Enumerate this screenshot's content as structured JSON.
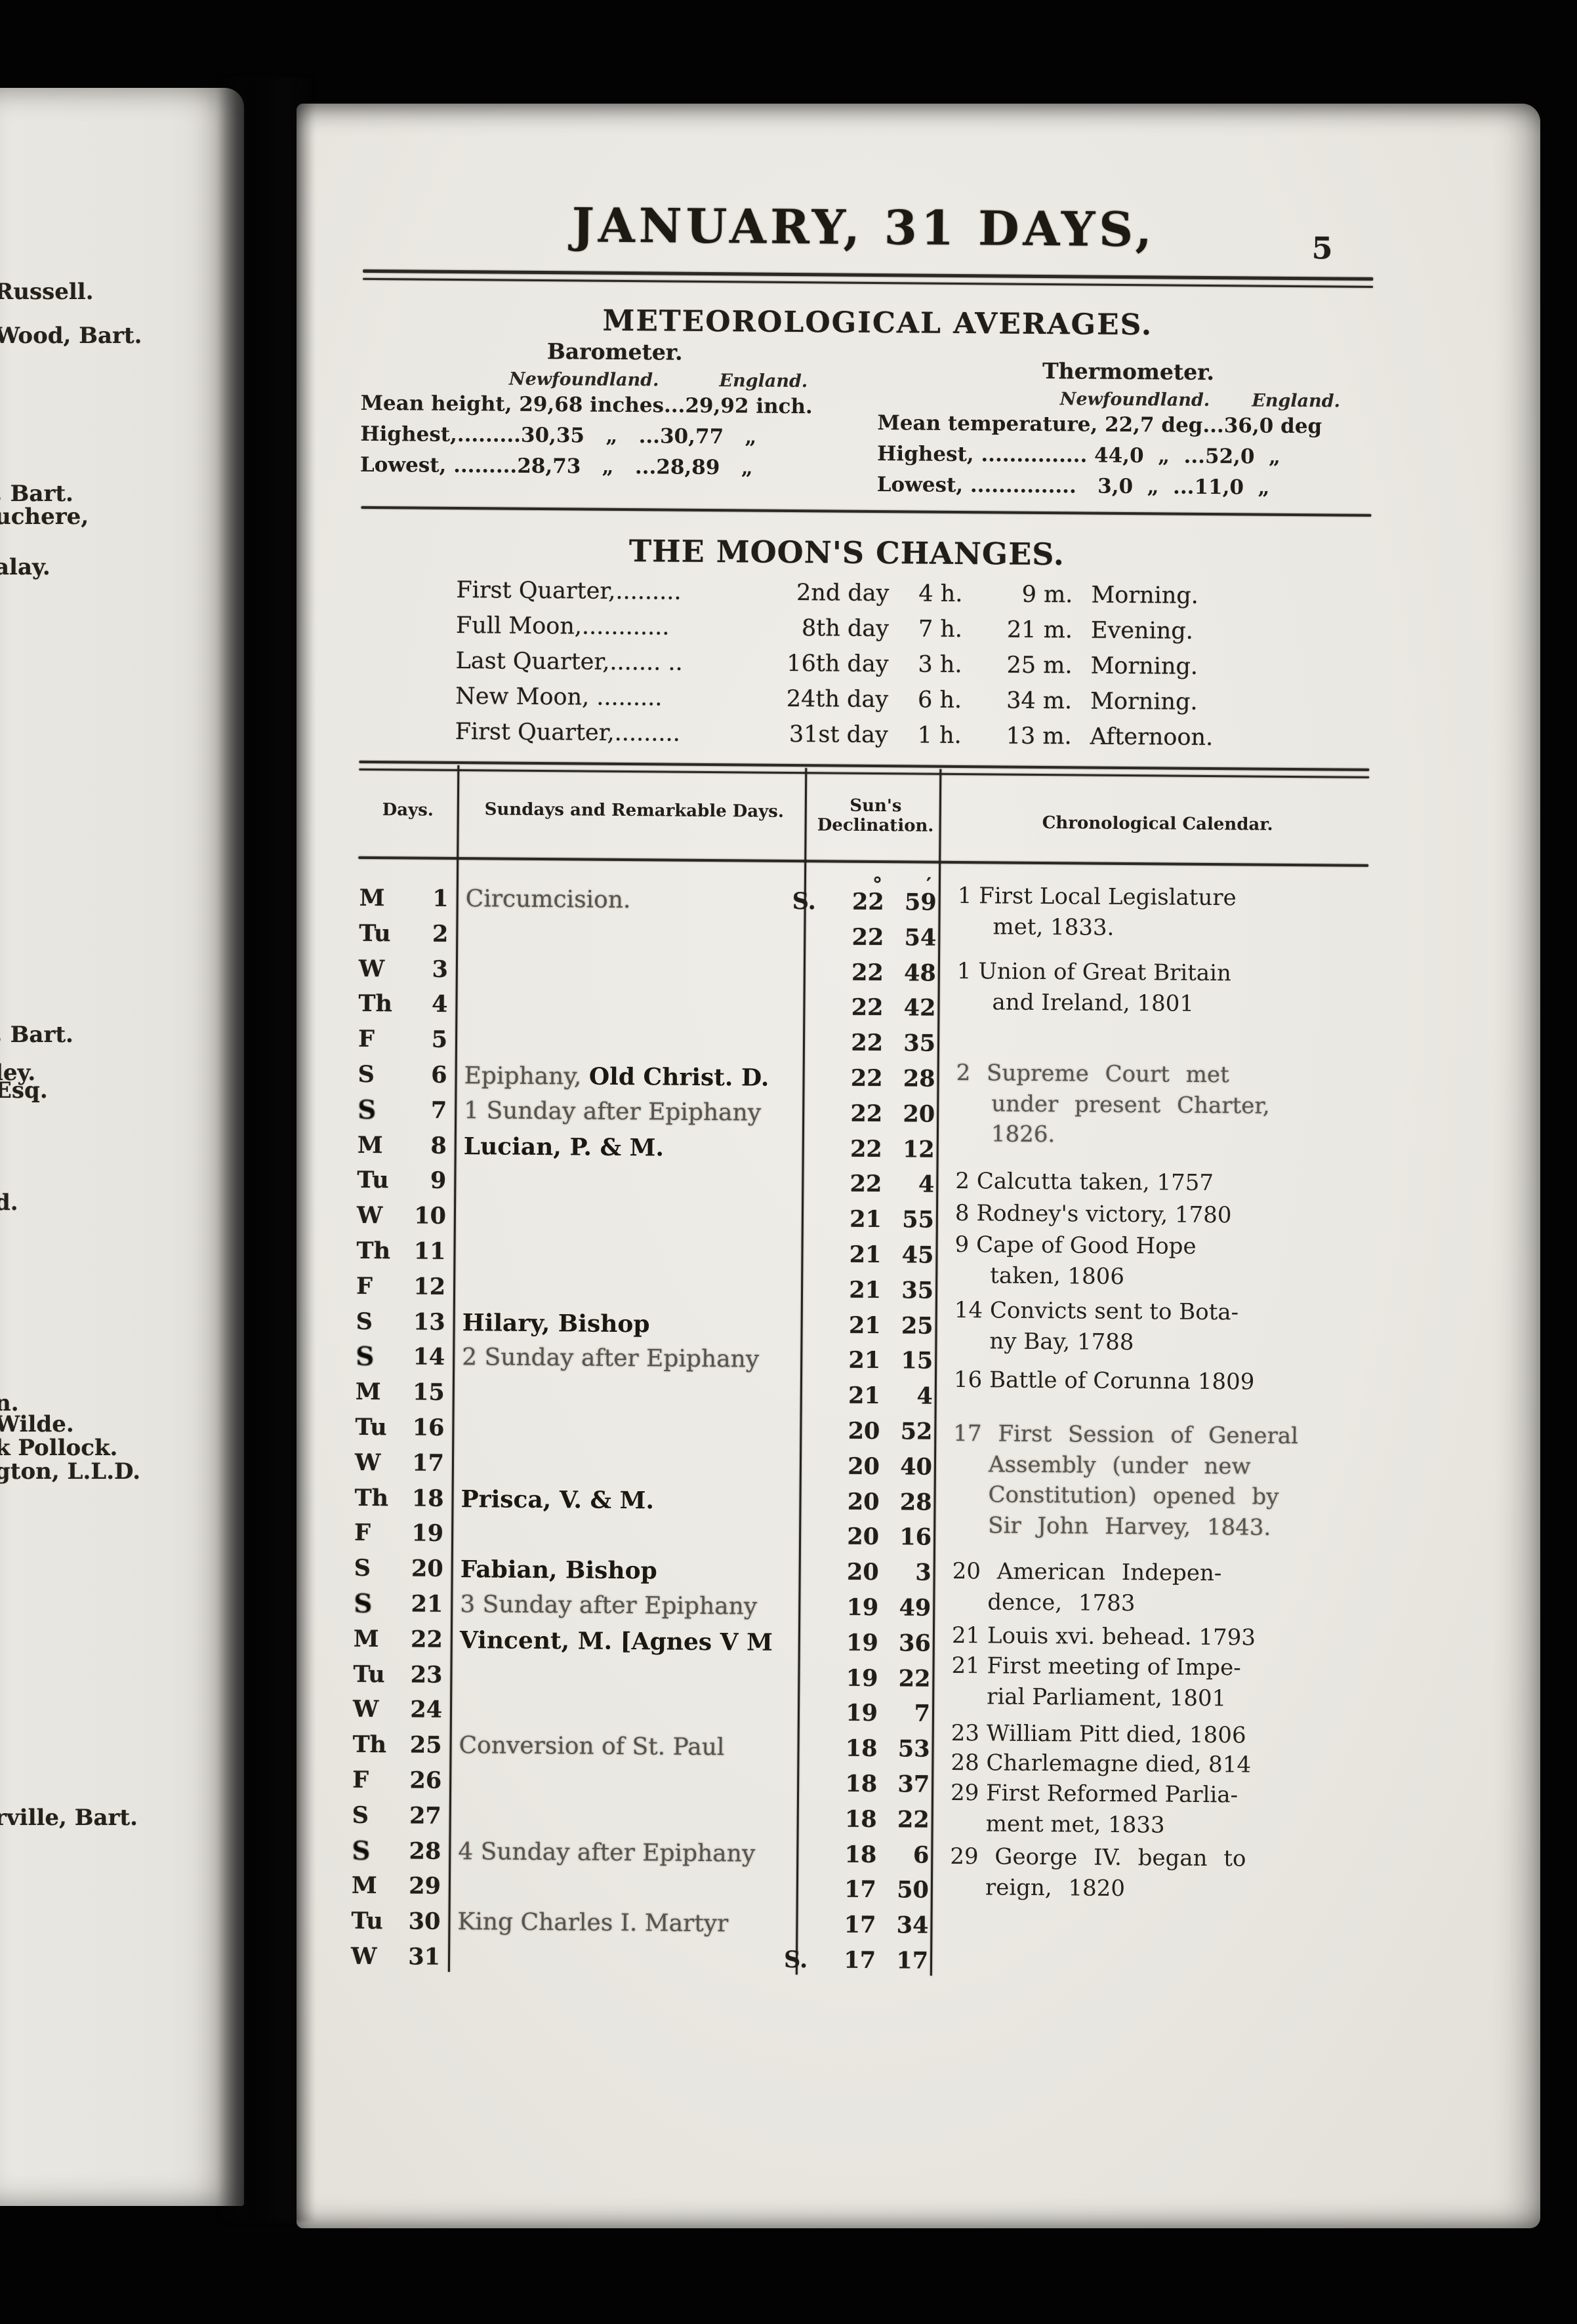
{
  "page": {
    "month_title": "JANUARY, 31 DAYS,",
    "page_number": "5"
  },
  "meteorological": {
    "title": "METEOROLOGICAL AVERAGES.",
    "barometer": {
      "title": "Barometer.",
      "col1": "Newfoundland.",
      "col2": "England.",
      "lines": [
        "Mean height, 29,68 inches...29,92 inch.",
        "Highest,.........30,35   „   ...30,77   „",
        "Lowest, .........28,73   „   ...28,89   „"
      ]
    },
    "thermometer": {
      "title": "Thermometer.",
      "col1": "Newfoundland.",
      "col2": "England.",
      "lines": [
        "Mean temperature, 22,7 deg...36,0 deg",
        "Highest, ............... 44,0  „  ...52,0  „",
        "Lowest, ...............   3,0  „  ...11,0  „"
      ]
    }
  },
  "moon": {
    "title": "THE MOON'S CHANGES.",
    "rows": [
      {
        "label": "First Quarter,.........",
        "day": "2nd day",
        "h": "4 h.",
        "m": "9 m.",
        "period": "Morning."
      },
      {
        "label": "Full Moon,............",
        "day": "8th day",
        "h": "7 h.",
        "m": "21 m.",
        "period": "Evening."
      },
      {
        "label": "Last Quarter,....... ..",
        "day": "16th day",
        "h": "3 h.",
        "m": "25 m.",
        "period": "Morning."
      },
      {
        "label": "New Moon,  .........",
        "day": "24th day",
        "h": "6 h.",
        "m": "34 m.",
        "period": "Morning."
      },
      {
        "label": "First Quarter,.........",
        "day": "31st day",
        "h": "1 h.",
        "m": "13 m.",
        "period": "Afternoon."
      }
    ]
  },
  "calendar": {
    "headers": {
      "days": "Days.",
      "sundays": "Sundays and Remarkable Days.",
      "declination_1": "Sun's",
      "declination_2": "Declination.",
      "chronological": "Chronological Calendar."
    },
    "rows": [
      {
        "day": "M",
        "date": "1",
        "sunday": false,
        "entry": [
          {
            "t": "Circumcision.",
            "s": "faded"
          }
        ],
        "decl_prefix": "S.",
        "decl_deg": "22",
        "decl_min": "59",
        "decl_marks": true
      },
      {
        "day": "Tu",
        "date": "2",
        "sunday": false,
        "entry": [],
        "decl_prefix": "",
        "decl_deg": "22",
        "decl_min": "54",
        "decl_marks": false
      },
      {
        "day": "W",
        "date": "3",
        "sunday": false,
        "entry": [],
        "decl_prefix": "",
        "decl_deg": "22",
        "decl_min": "48",
        "decl_marks": false
      },
      {
        "day": "Th",
        "date": "4",
        "sunday": false,
        "entry": [],
        "decl_prefix": "",
        "decl_deg": "22",
        "decl_min": "42",
        "decl_marks": false
      },
      {
        "day": "F",
        "date": "5",
        "sunday": false,
        "entry": [],
        "decl_prefix": "",
        "decl_deg": "22",
        "decl_min": "35",
        "decl_marks": false
      },
      {
        "day": "S",
        "date": "6",
        "sunday": false,
        "entry": [
          {
            "t": "Epiphany, ",
            "s": "faded"
          },
          {
            "t": "Old Christ. D.",
            "s": "bold"
          }
        ],
        "decl_prefix": "",
        "decl_deg": "22",
        "decl_min": "28",
        "decl_marks": false
      },
      {
        "day": "S",
        "date": "7",
        "sunday": true,
        "entry": [
          {
            "t": "1 Sunday after Epiphany",
            "s": "faded"
          }
        ],
        "decl_prefix": "",
        "decl_deg": "22",
        "decl_min": "20",
        "decl_marks": false
      },
      {
        "day": "M",
        "date": "8",
        "sunday": false,
        "entry": [
          {
            "t": "Lucian, P. & M.",
            "s": "bold"
          }
        ],
        "decl_prefix": "",
        "decl_deg": "22",
        "decl_min": "12",
        "decl_marks": false
      },
      {
        "day": "Tu",
        "date": "9",
        "sunday": false,
        "entry": [],
        "decl_prefix": "",
        "decl_deg": "22",
        "decl_min": "4",
        "decl_marks": false
      },
      {
        "day": "W",
        "date": "10",
        "sunday": false,
        "entry": [],
        "decl_prefix": "",
        "decl_deg": "21",
        "decl_min": "55",
        "decl_marks": false
      },
      {
        "day": "Th",
        "date": "11",
        "sunday": false,
        "entry": [],
        "decl_prefix": "",
        "decl_deg": "21",
        "decl_min": "45",
        "decl_marks": false
      },
      {
        "day": "F",
        "date": "12",
        "sunday": false,
        "entry": [],
        "decl_prefix": "",
        "decl_deg": "21",
        "decl_min": "35",
        "decl_marks": false
      },
      {
        "day": "S",
        "date": "13",
        "sunday": false,
        "entry": [
          {
            "t": "Hilary, Bishop",
            "s": "bold"
          }
        ],
        "decl_prefix": "",
        "decl_deg": "21",
        "decl_min": "25",
        "decl_marks": false
      },
      {
        "day": "S",
        "date": "14",
        "sunday": true,
        "entry": [
          {
            "t": "2 Sunday after Epiphany",
            "s": "faded"
          }
        ],
        "decl_prefix": "",
        "decl_deg": "21",
        "decl_min": "15",
        "decl_marks": false
      },
      {
        "day": "M",
        "date": "15",
        "sunday": false,
        "entry": [],
        "decl_prefix": "",
        "decl_deg": "21",
        "decl_min": "4",
        "decl_marks": false
      },
      {
        "day": "Tu",
        "date": "16",
        "sunday": false,
        "entry": [],
        "decl_prefix": "",
        "decl_deg": "20",
        "decl_min": "52",
        "decl_marks": false
      },
      {
        "day": "W",
        "date": "17",
        "sunday": false,
        "entry": [],
        "decl_prefix": "",
        "decl_deg": "20",
        "decl_min": "40",
        "decl_marks": false
      },
      {
        "day": "Th",
        "date": "18",
        "sunday": false,
        "entry": [
          {
            "t": "Prisca, V. & M.",
            "s": "bold"
          }
        ],
        "decl_prefix": "",
        "decl_deg": "20",
        "decl_min": "28",
        "decl_marks": false
      },
      {
        "day": "F",
        "date": "19",
        "sunday": false,
        "entry": [],
        "decl_prefix": "",
        "decl_deg": "20",
        "decl_min": "16",
        "decl_marks": false
      },
      {
        "day": "S",
        "date": "20",
        "sunday": false,
        "entry": [
          {
            "t": "Fabian, Bishop",
            "s": "bold"
          }
        ],
        "decl_prefix": "",
        "decl_deg": "20",
        "decl_min": "3",
        "decl_marks": false
      },
      {
        "day": "S",
        "date": "21",
        "sunday": true,
        "entry": [
          {
            "t": "3 Sunday after Epiphany",
            "s": "faded"
          }
        ],
        "decl_prefix": "",
        "decl_deg": "19",
        "decl_min": "49",
        "decl_marks": false
      },
      {
        "day": "M",
        "date": "22",
        "sunday": false,
        "entry": [
          {
            "t": "Vincent, M. [Agnes V M",
            "s": "bold"
          }
        ],
        "decl_prefix": "",
        "decl_deg": "19",
        "decl_min": "36",
        "decl_marks": false
      },
      {
        "day": "Tu",
        "date": "23",
        "sunday": false,
        "entry": [],
        "decl_prefix": "",
        "decl_deg": "19",
        "decl_min": "22",
        "decl_marks": false
      },
      {
        "day": "W",
        "date": "24",
        "sunday": false,
        "entry": [],
        "decl_prefix": "",
        "decl_deg": "19",
        "decl_min": "7",
        "decl_marks": false
      },
      {
        "day": "Th",
        "date": "25",
        "sunday": false,
        "entry": [
          {
            "t": "Conversion of St. Paul",
            "s": "faded"
          }
        ],
        "decl_prefix": "",
        "decl_deg": "18",
        "decl_min": "53",
        "decl_marks": false
      },
      {
        "day": "F",
        "date": "26",
        "sunday": false,
        "entry": [],
        "decl_prefix": "",
        "decl_deg": "18",
        "decl_min": "37",
        "decl_marks": false
      },
      {
        "day": "S",
        "date": "27",
        "sunday": false,
        "entry": [],
        "decl_prefix": "",
        "decl_deg": "18",
        "decl_min": "22",
        "decl_marks": false
      },
      {
        "day": "S",
        "date": "28",
        "sunday": true,
        "entry": [
          {
            "t": "4 Sunday after Epiphany",
            "s": "faded"
          }
        ],
        "decl_prefix": "",
        "decl_deg": "18",
        "decl_min": "6",
        "decl_marks": false
      },
      {
        "day": "M",
        "date": "29",
        "sunday": false,
        "entry": [],
        "decl_prefix": "",
        "decl_deg": "17",
        "decl_min": "50",
        "decl_marks": false
      },
      {
        "day": "Tu",
        "date": "30",
        "sunday": false,
        "entry": [
          {
            "t": "King Charles I. Martyr",
            "s": "faded"
          }
        ],
        "decl_prefix": "",
        "decl_deg": "17",
        "decl_min": "34",
        "decl_marks": false
      },
      {
        "day": "W",
        "date": "31",
        "sunday": false,
        "entry": [],
        "decl_prefix": "S.",
        "decl_deg": "17",
        "decl_min": "17",
        "decl_marks": false
      }
    ],
    "chronological": [
      {
        "lines": [
          "1 First Local Legislature",
          "met, 1833."
        ]
      },
      {
        "lines": [
          "1 Union of Great Britain",
          "and Ireland, 1801"
        ]
      },
      {
        "lines": [
          "2 Supreme Court met",
          "under present Charter,",
          "1826."
        ]
      },
      {
        "lines": [
          "2 Calcutta taken, 1757"
        ]
      },
      {
        "lines": [
          "8 Rodney's victory, 1780"
        ]
      },
      {
        "lines": [
          "9 Cape of Good Hope",
          "taken, 1806"
        ]
      },
      {
        "lines": [
          "14 Convicts sent to Bota-",
          "ny Bay, 1788"
        ]
      },
      {
        "lines": [
          "16 Battle of Corunna 1809"
        ]
      },
      {
        "lines": [
          "17 First Session of General",
          "Assembly (under new",
          "Constitution) opened by",
          "Sir John Harvey, 1843."
        ]
      },
      {
        "lines": [
          "20 American Indepen-",
          "dence, 1783"
        ]
      },
      {
        "lines": [
          "21 Louis xvi. behead. 1793"
        ]
      },
      {
        "lines": [
          "21 First meeting of Impe-",
          "rial Parliament, 1801"
        ]
      },
      {
        "lines": [
          "23 William Pitt died, 1806"
        ]
      },
      {
        "lines": [
          "28 Charlemagne died, 814"
        ]
      },
      {
        "lines": [
          "29 First Reformed Parlia-",
          "ment met, 1833"
        ]
      },
      {
        "lines": [
          "29 George IV. began to",
          "reign, 1820"
        ]
      }
    ]
  },
  "left_page_fragments": [
    "Russell.",
    "Wood, Bart.",
    ", Bart.",
    "uchere,",
    "alay.",
    ", Bart.",
    "ley.",
    "Esq.",
    "d.",
    "n.",
    "Wilde.",
    "k Pollock.",
    "gton, L.L.D.",
    "rville, Bart."
  ]
}
